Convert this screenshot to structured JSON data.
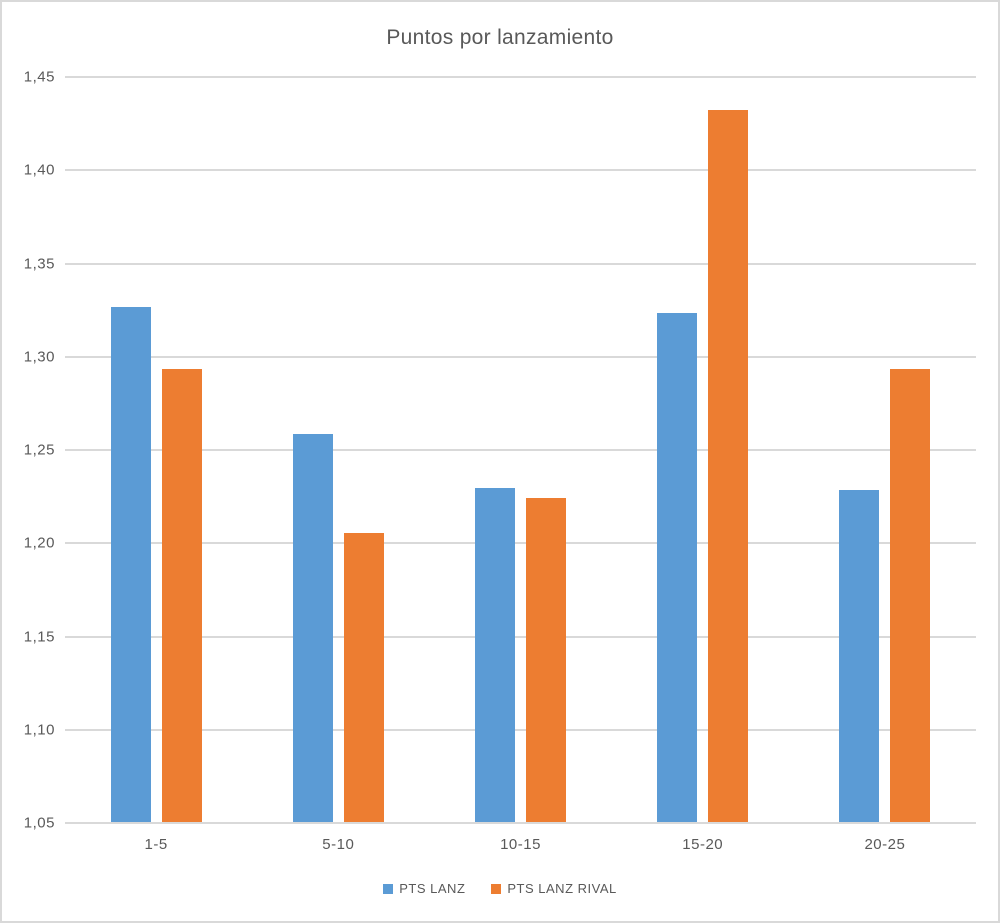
{
  "chart_data": {
    "type": "bar",
    "title": "Puntos por lanzamiento",
    "categories": [
      "1-5",
      "5-10",
      "10-15",
      "15-20",
      "20-25"
    ],
    "series": [
      {
        "name": "PTS LANZ",
        "color": "#5B9BD5",
        "values": [
          1.326,
          1.258,
          1.229,
          1.323,
          1.228
        ]
      },
      {
        "name": "PTS LANZ RIVAL",
        "color": "#ED7D31",
        "values": [
          1.293,
          1.205,
          1.224,
          1.432,
          1.293
        ]
      }
    ],
    "xlabel": "",
    "ylabel": "",
    "ylim": [
      1.05,
      1.45
    ],
    "y_ticks": {
      "values": [
        1.45,
        1.4,
        1.35,
        1.3,
        1.25,
        1.2,
        1.15,
        1.1,
        1.05
      ],
      "labels": [
        "1,45",
        "1,40",
        "1,35",
        "1,30",
        "1,25",
        "1,20",
        "1,15",
        "1,10",
        "1,05"
      ]
    },
    "grid": true,
    "legend_position": "bottom",
    "colors": {
      "gridline": "#D9D9D9",
      "axis_line": "#D9D9D9",
      "text": "#595959",
      "chart_border": "#D9D9D9",
      "background": "#FFFFFF"
    }
  }
}
